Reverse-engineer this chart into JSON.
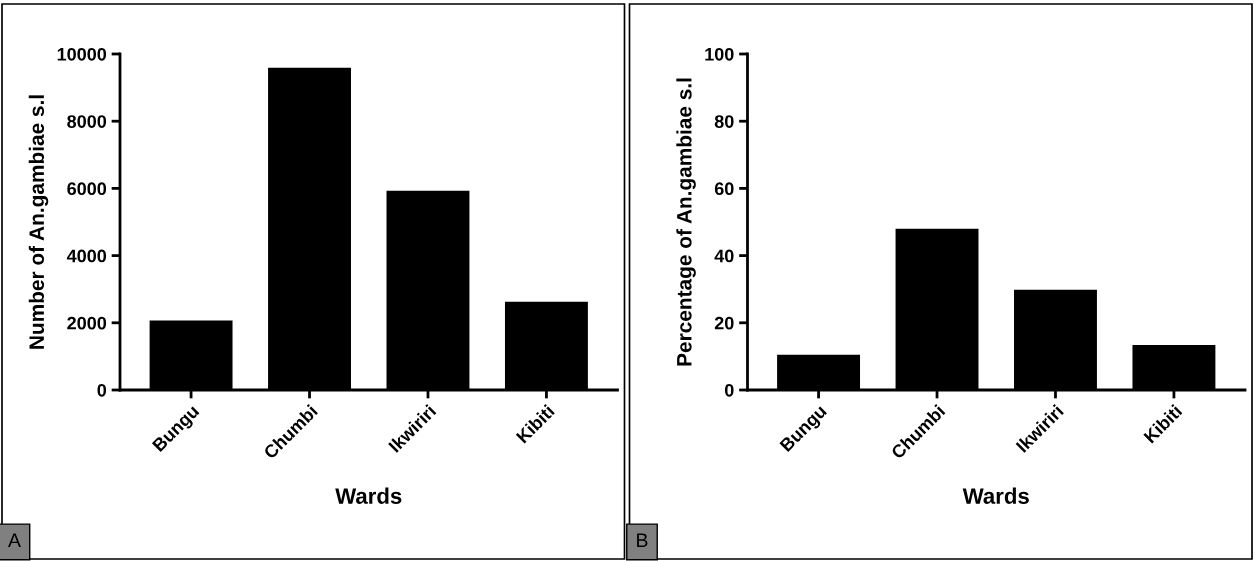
{
  "chart_data": [
    {
      "type": "bar",
      "categories": [
        "Bungu",
        "Chumbi",
        "Ikwiriri",
        "Kibiti"
      ],
      "values": [
        2070,
        9590,
        5930,
        2630
      ],
      "color": "#000000",
      "xlabel": "Wards",
      "ylabel": "Number of An.gambiae s.l",
      "ylim": [
        0,
        10000
      ],
      "yticks": [
        0,
        2000,
        4000,
        6000,
        8000,
        10000
      ],
      "annotations": [
        "A"
      ]
    },
    {
      "type": "bar",
      "categories": [
        "Bungu",
        "Chumbi",
        "Ikwiriri",
        "Kibiti"
      ],
      "values": [
        10.5,
        48.0,
        29.8,
        13.4
      ],
      "color": "#000000",
      "xlabel": "Wards",
      "ylabel": "Percentage of An.gambiae s.l",
      "ylim": [
        0,
        100
      ],
      "yticks": [
        0,
        20,
        40,
        60,
        80,
        100
      ],
      "annotations": [
        "B"
      ]
    }
  ]
}
